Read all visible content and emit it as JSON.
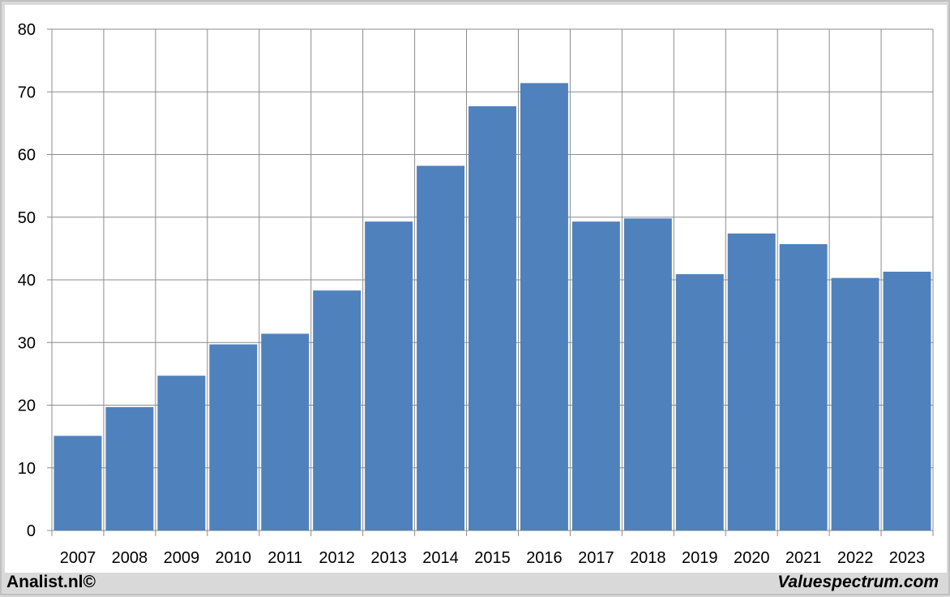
{
  "chart_data": {
    "type": "bar",
    "categories": [
      "2007",
      "2008",
      "2009",
      "2010",
      "2011",
      "2012",
      "2013",
      "2014",
      "2015",
      "2016",
      "2017",
      "2018",
      "2019",
      "2020",
      "2021",
      "2022",
      "2023"
    ],
    "values": [
      15.1,
      19.7,
      24.7,
      29.7,
      31.4,
      38.3,
      49.3,
      58.2,
      67.7,
      71.4,
      49.3,
      49.8,
      40.9,
      47.4,
      45.7,
      40.3,
      41.3
    ],
    "yticks": [
      "0",
      "10",
      "20",
      "30",
      "40",
      "50",
      "60",
      "70",
      "80"
    ],
    "ylim": [
      0,
      80
    ],
    "grid": true,
    "bar_color": "#4f81bd"
  },
  "footer": {
    "left": "Analist.nl©",
    "right": "Valuespectrum.com"
  }
}
